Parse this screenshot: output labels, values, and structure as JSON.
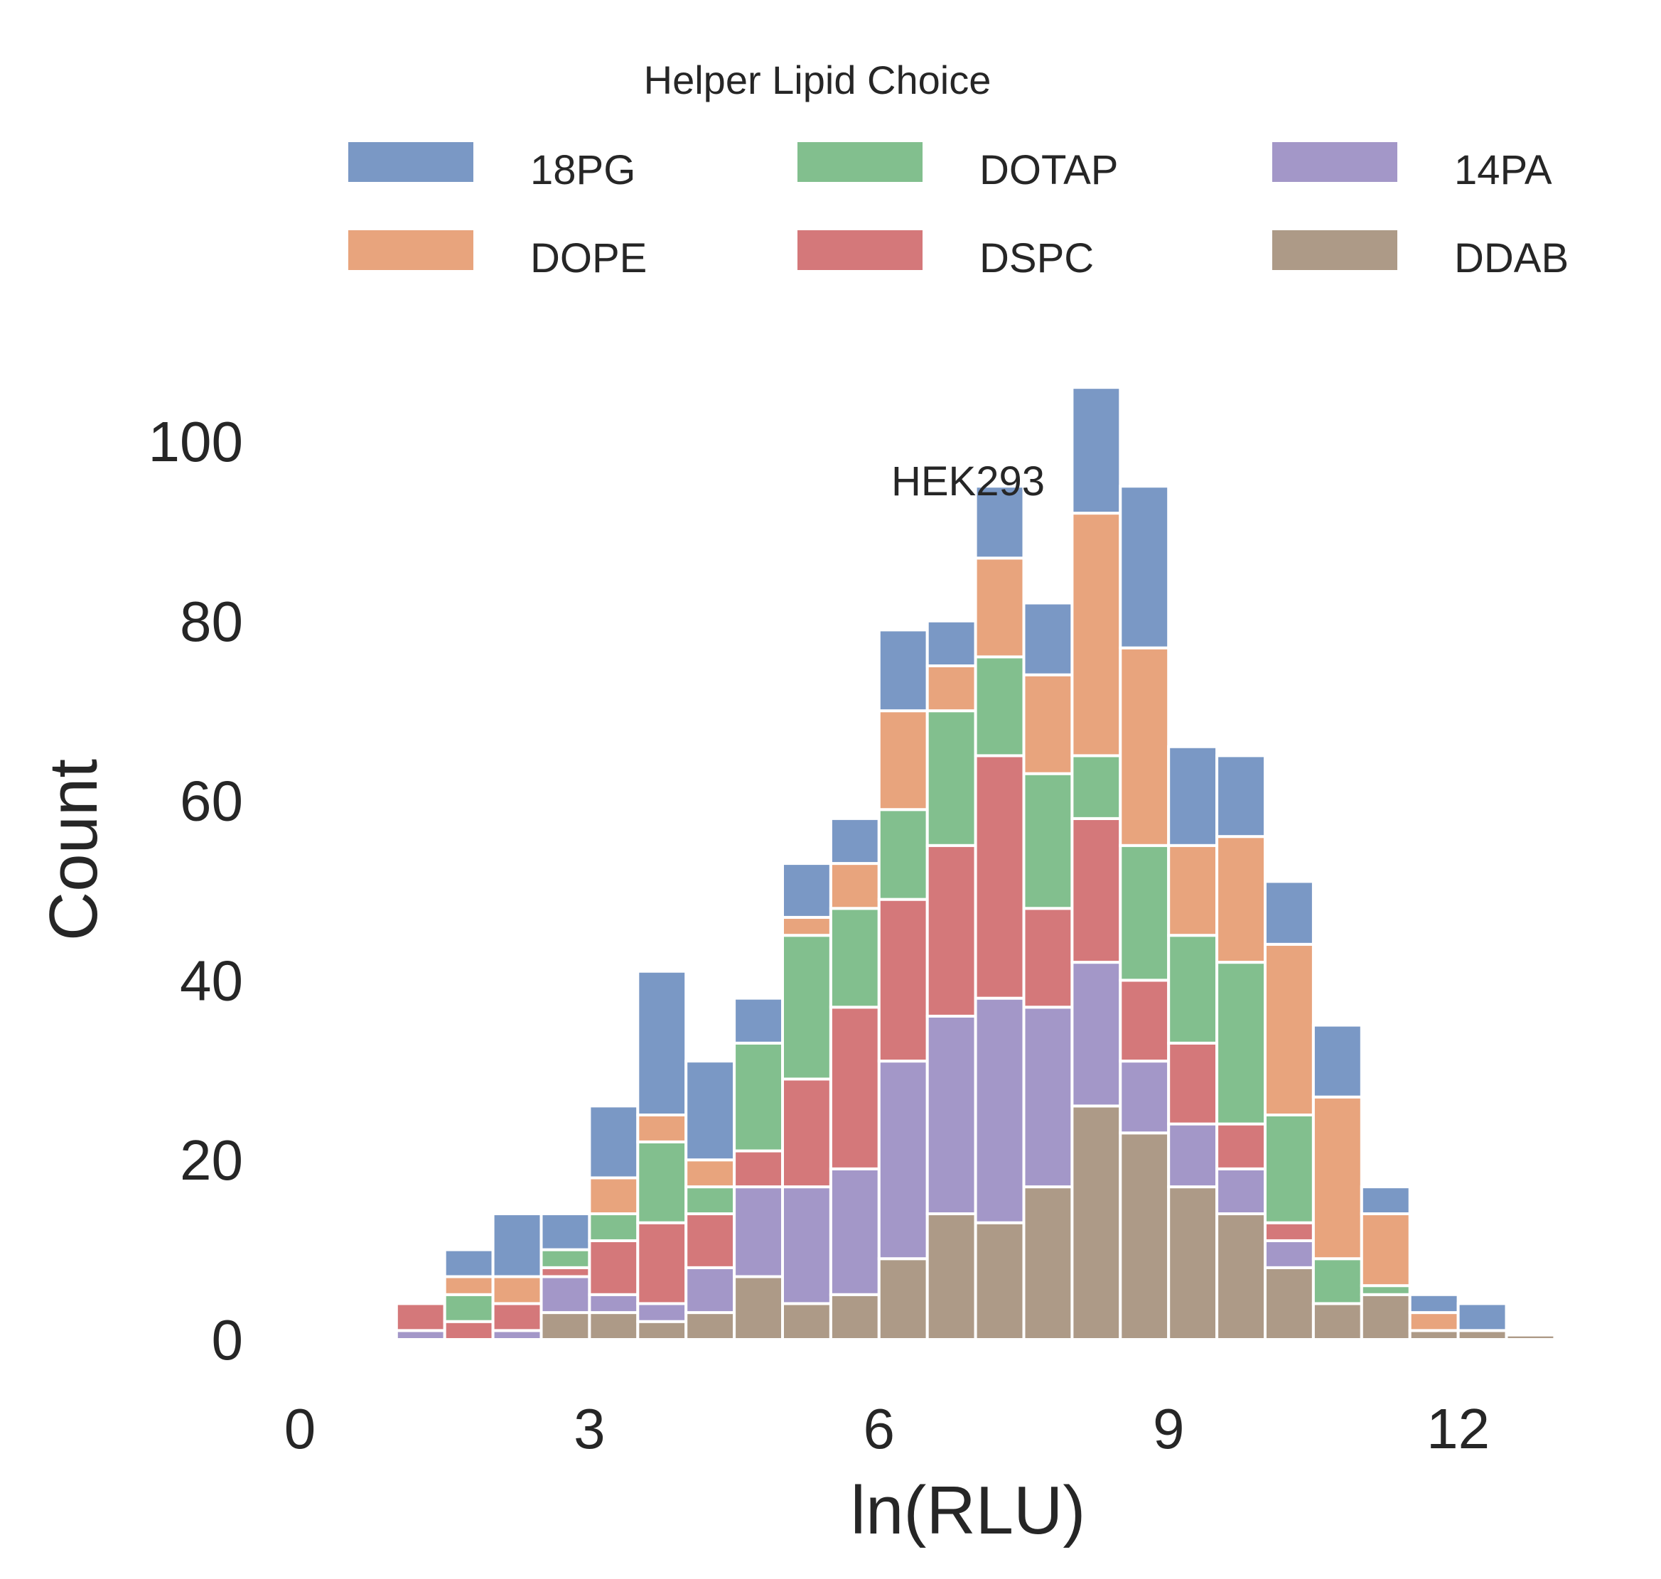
{
  "chart_data": {
    "type": "bar",
    "stacked": true,
    "title": "HEK293",
    "xlabel": "ln(RLU)",
    "ylabel": "Count",
    "xlim": [
      0,
      13.3
    ],
    "ylim": [
      0,
      106
    ],
    "xticks": [
      0,
      3,
      6,
      9,
      12
    ],
    "yticks": [
      0,
      20,
      40,
      60,
      80,
      100
    ],
    "grid": false,
    "legend": {
      "title": "Helper Lipid Choice",
      "placement": "top-center",
      "columns": 3
    },
    "bin_width": 0.5,
    "bins": [
      1.25,
      1.75,
      2.25,
      2.75,
      3.25,
      3.75,
      4.25,
      4.75,
      5.25,
      5.75,
      6.25,
      6.75,
      7.25,
      7.75,
      8.25,
      8.75,
      9.25,
      9.75,
      10.25,
      10.75,
      11.25,
      11.75,
      12.25,
      12.75
    ],
    "series": [
      {
        "name": "DDAB",
        "color": "#ad9a87",
        "values": [
          0,
          0,
          0,
          3,
          3,
          2,
          3,
          7,
          4,
          5,
          9,
          14,
          13,
          17,
          26,
          23,
          17,
          14,
          8,
          4,
          5,
          1,
          1,
          0.5
        ]
      },
      {
        "name": "14PA",
        "color": "#a397c8",
        "values": [
          1,
          0,
          1,
          4,
          2,
          2,
          5,
          10,
          13,
          14,
          22,
          22,
          25,
          20,
          16,
          8,
          7,
          5,
          3,
          0,
          0,
          0,
          0,
          0
        ]
      },
      {
        "name": "DSPC",
        "color": "#d4787a",
        "values": [
          3,
          2,
          3,
          1,
          6,
          9,
          6,
          4,
          12,
          18,
          18,
          19,
          27,
          11,
          16,
          9,
          9,
          5,
          2,
          0,
          0,
          0,
          0,
          0
        ]
      },
      {
        "name": "DOTAP",
        "color": "#82bf8e",
        "values": [
          0,
          3,
          0,
          2,
          3,
          9,
          3,
          12,
          16,
          11,
          10,
          15,
          11,
          15,
          7,
          15,
          12,
          18,
          12,
          5,
          1,
          0,
          0,
          0
        ]
      },
      {
        "name": "DOPE",
        "color": "#e8a47d",
        "values": [
          0,
          2,
          3,
          0,
          4,
          3,
          3,
          0,
          2,
          5,
          11,
          5,
          11,
          11,
          27,
          22,
          10,
          14,
          19,
          18,
          8,
          2,
          0,
          0
        ]
      },
      {
        "name": "18PG",
        "color": "#7a98c5",
        "values": [
          0,
          3,
          7,
          4,
          8,
          16,
          11,
          5,
          6,
          5,
          9,
          5,
          8,
          8,
          14,
          18,
          11,
          9,
          7,
          8,
          3,
          2,
          3,
          0
        ]
      }
    ]
  }
}
